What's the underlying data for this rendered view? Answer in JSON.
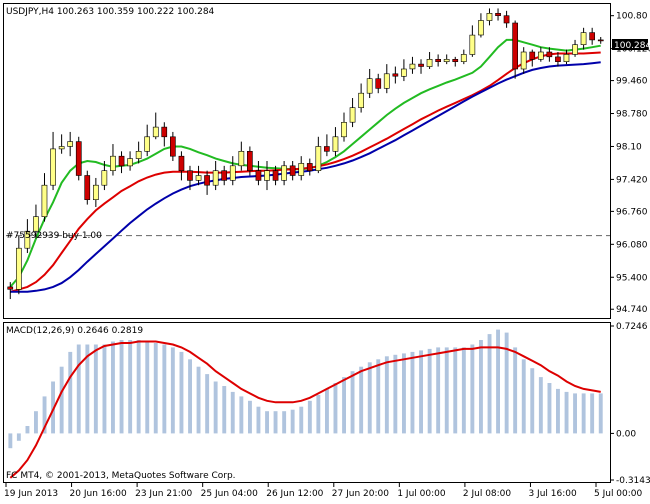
{
  "window": {
    "symbol_line": "USDJPY,H4  100.263 100.359 100.222 100.284",
    "order_line": "#75592939 buy 1.00",
    "copyright": "FC MT4, © 2001-2013, MetaQuotes Software Corp.",
    "macd_label": "MACD(12,26,9) 0.2646 0.2819",
    "current_price": "100.284",
    "colors": {
      "bull_candle": "#ffff88",
      "bear_candle": "#cc0000",
      "ma_fast": "#22bb22",
      "ma_mid": "#dd0000",
      "ma_slow": "#0000aa",
      "macd_hist": "#b0c4de",
      "macd_signal": "#dd0000",
      "order_line": "#666666"
    }
  },
  "chart_data": [
    {
      "type": "candlestick",
      "title": "USDJPY,H4",
      "y_ticks": [
        "100.80",
        "100.120",
        "99.460",
        "98.780",
        "98.10",
        "97.420",
        "96.760",
        "96.080",
        "95.400",
        "94.740"
      ],
      "ylim": [
        94.6,
        101.0
      ],
      "x_ticks": [
        "19 Jun 2013",
        "20 Jun 16:00",
        "23 Jun 21:00",
        "25 Jun 04:00",
        "26 Jun 12:00",
        "27 Jun 20:00",
        "1 Jul 00:00",
        "2 Jul 08:00",
        "3 Jul 16:00",
        "5 Jul 00:00"
      ],
      "order_price": 96.26,
      "grid": false,
      "candles": [
        [
          95.2,
          95.15,
          95.3,
          94.95
        ],
        [
          95.15,
          96.0,
          96.25,
          95.05
        ],
        [
          96.0,
          96.35,
          96.6,
          95.9
        ],
        [
          96.35,
          96.65,
          96.9,
          96.2
        ],
        [
          96.65,
          97.3,
          97.55,
          96.55
        ],
        [
          97.3,
          98.05,
          98.4,
          97.2
        ],
        [
          98.05,
          98.1,
          98.35,
          97.95
        ],
        [
          98.1,
          98.2,
          98.4,
          97.9
        ],
        [
          98.2,
          97.5,
          98.3,
          97.4
        ],
        [
          97.5,
          97.0,
          97.6,
          96.9
        ],
        [
          97.0,
          97.3,
          97.45,
          96.85
        ],
        [
          97.3,
          97.6,
          97.8,
          97.2
        ],
        [
          97.6,
          97.9,
          98.15,
          97.5
        ],
        [
          97.9,
          97.7,
          98.0,
          97.55
        ],
        [
          97.7,
          97.85,
          98.0,
          97.6
        ],
        [
          97.85,
          98.0,
          98.2,
          97.75
        ],
        [
          98.0,
          98.3,
          98.55,
          97.9
        ],
        [
          98.3,
          98.5,
          98.8,
          98.25
        ],
        [
          98.5,
          98.3,
          98.6,
          98.1
        ],
        [
          98.3,
          97.9,
          98.4,
          97.8
        ],
        [
          97.9,
          97.6,
          98.0,
          97.4
        ],
        [
          97.6,
          97.4,
          97.7,
          97.2
        ],
        [
          97.4,
          97.5,
          97.7,
          97.3
        ],
        [
          97.5,
          97.3,
          97.6,
          97.1
        ],
        [
          97.3,
          97.6,
          97.8,
          97.2
        ],
        [
          97.6,
          97.4,
          97.7,
          97.3
        ],
        [
          97.4,
          97.7,
          97.9,
          97.3
        ],
        [
          97.7,
          98.0,
          98.2,
          97.6
        ],
        [
          98.0,
          97.6,
          98.1,
          97.5
        ],
        [
          97.6,
          97.4,
          97.8,
          97.3
        ],
        [
          97.4,
          97.6,
          97.8,
          97.2
        ],
        [
          97.6,
          97.4,
          97.7,
          97.3
        ],
        [
          97.4,
          97.7,
          97.8,
          97.3
        ],
        [
          97.7,
          97.5,
          97.8,
          97.4
        ],
        [
          97.5,
          97.75,
          97.9,
          97.4
        ],
        [
          97.75,
          97.6,
          97.85,
          97.5
        ],
        [
          97.6,
          98.1,
          98.3,
          97.55
        ],
        [
          98.1,
          98.0,
          98.35,
          97.9
        ],
        [
          98.0,
          98.3,
          98.5,
          97.9
        ],
        [
          98.3,
          98.6,
          98.8,
          98.2
        ],
        [
          98.6,
          98.9,
          99.1,
          98.5
        ],
        [
          98.9,
          99.2,
          99.4,
          98.8
        ],
        [
          99.2,
          99.5,
          99.7,
          99.1
        ],
        [
          99.5,
          99.3,
          99.6,
          99.2
        ],
        [
          99.3,
          99.6,
          99.8,
          99.2
        ],
        [
          99.6,
          99.55,
          99.75,
          99.4
        ],
        [
          99.55,
          99.7,
          99.9,
          99.45
        ],
        [
          99.7,
          99.8,
          99.95,
          99.6
        ],
        [
          99.8,
          99.75,
          99.9,
          99.6
        ],
        [
          99.75,
          99.9,
          100.05,
          99.7
        ],
        [
          99.9,
          99.85,
          100.0,
          99.75
        ],
        [
          99.85,
          99.9,
          100.0,
          99.8
        ],
        [
          99.9,
          99.85,
          99.95,
          99.75
        ],
        [
          99.85,
          100.0,
          100.1,
          99.8
        ],
        [
          100.0,
          100.4,
          100.6,
          99.95
        ],
        [
          100.4,
          100.7,
          100.85,
          100.35
        ],
        [
          100.7,
          100.85,
          100.95,
          100.6
        ],
        [
          100.85,
          100.8,
          100.95,
          100.7
        ],
        [
          100.8,
          100.65,
          100.9,
          100.55
        ],
        [
          100.65,
          99.7,
          100.7,
          99.5
        ],
        [
          99.7,
          100.05,
          100.15,
          99.6
        ],
        [
          100.05,
          99.9,
          100.1,
          99.75
        ],
        [
          99.9,
          100.05,
          100.15,
          99.85
        ],
        [
          100.05,
          99.95,
          100.15,
          99.85
        ],
        [
          99.95,
          99.85,
          100.05,
          99.75
        ],
        [
          99.85,
          100.0,
          100.1,
          99.8
        ],
        [
          100.0,
          100.2,
          100.3,
          99.95
        ],
        [
          100.2,
          100.45,
          100.55,
          100.1
        ],
        [
          100.45,
          100.3,
          100.55,
          100.2
        ],
        [
          100.3,
          100.28,
          100.36,
          100.22
        ]
      ],
      "series": [
        {
          "name": "ma_fast",
          "values": [
            95.2,
            95.4,
            95.75,
            96.2,
            96.6,
            96.95,
            97.35,
            97.6,
            97.75,
            97.8,
            97.78,
            97.72,
            97.68,
            97.7,
            97.72,
            97.78,
            97.85,
            97.95,
            98.05,
            98.1,
            98.1,
            98.05,
            97.98,
            97.92,
            97.85,
            97.8,
            97.75,
            97.72,
            97.7,
            97.68,
            97.66,
            97.65,
            97.64,
            97.63,
            97.63,
            97.65,
            97.7,
            97.78,
            97.88,
            98.0,
            98.15,
            98.3,
            98.45,
            98.6,
            98.75,
            98.88,
            99.0,
            99.1,
            99.2,
            99.28,
            99.35,
            99.42,
            99.48,
            99.55,
            99.62,
            99.75,
            99.95,
            100.15,
            100.3,
            100.3,
            100.25,
            100.2,
            100.15,
            100.12,
            100.1,
            100.08,
            100.1,
            100.12,
            100.15,
            100.18
          ]
        },
        {
          "name": "ma_mid",
          "values": [
            95.1,
            95.15,
            95.2,
            95.3,
            95.45,
            95.65,
            95.9,
            96.15,
            96.4,
            96.6,
            96.78,
            96.92,
            97.05,
            97.18,
            97.28,
            97.38,
            97.46,
            97.52,
            97.56,
            97.58,
            97.58,
            97.58,
            97.57,
            97.56,
            97.56,
            97.56,
            97.57,
            97.58,
            97.59,
            97.6,
            97.6,
            97.61,
            97.62,
            97.63,
            97.64,
            97.66,
            97.69,
            97.73,
            97.78,
            97.84,
            97.91,
            97.99,
            98.08,
            98.17,
            98.26,
            98.36,
            98.46,
            98.56,
            98.66,
            98.75,
            98.84,
            98.92,
            99.0,
            99.08,
            99.16,
            99.25,
            99.35,
            99.47,
            99.6,
            99.72,
            99.82,
            99.9,
            99.96,
            100.0,
            100.02,
            100.02,
            100.02,
            100.02,
            100.03,
            100.04
          ]
        },
        {
          "name": "ma_slow",
          "values": [
            95.1,
            95.1,
            95.1,
            95.12,
            95.15,
            95.2,
            95.28,
            95.4,
            95.55,
            95.72,
            95.88,
            96.04,
            96.2,
            96.36,
            96.52,
            96.66,
            96.8,
            96.92,
            97.03,
            97.13,
            97.21,
            97.28,
            97.33,
            97.37,
            97.4,
            97.43,
            97.45,
            97.47,
            97.48,
            97.49,
            97.5,
            97.52,
            97.54,
            97.56,
            97.58,
            97.6,
            97.63,
            97.66,
            97.7,
            97.75,
            97.81,
            97.88,
            97.96,
            98.05,
            98.14,
            98.23,
            98.33,
            98.43,
            98.53,
            98.63,
            98.73,
            98.83,
            98.93,
            99.03,
            99.13,
            99.22,
            99.31,
            99.4,
            99.48,
            99.55,
            99.62,
            99.68,
            99.72,
            99.75,
            99.77,
            99.78,
            99.79,
            99.8,
            99.82,
            99.84
          ]
        }
      ]
    },
    {
      "type": "bar",
      "title": "MACD(12,26,9) 0.2646 0.2819",
      "y_ticks": [
        "0.7246",
        "0.00",
        "-0.3143"
      ],
      "ylim": [
        -0.3143,
        0.7246
      ],
      "series": [
        {
          "name": "MACD",
          "values": [
            -0.1,
            -0.05,
            0.05,
            0.15,
            0.25,
            0.35,
            0.45,
            0.55,
            0.6,
            0.6,
            0.6,
            0.6,
            0.62,
            0.63,
            0.63,
            0.63,
            0.62,
            0.61,
            0.6,
            0.58,
            0.55,
            0.5,
            0.45,
            0.4,
            0.35,
            0.32,
            0.28,
            0.25,
            0.22,
            0.18,
            0.15,
            0.15,
            0.15,
            0.16,
            0.18,
            0.22,
            0.26,
            0.3,
            0.34,
            0.38,
            0.42,
            0.45,
            0.48,
            0.5,
            0.52,
            0.53,
            0.54,
            0.55,
            0.56,
            0.57,
            0.58,
            0.58,
            0.58,
            0.58,
            0.6,
            0.63,
            0.67,
            0.7,
            0.68,
            0.58,
            0.5,
            0.44,
            0.38,
            0.34,
            0.3,
            0.28,
            0.27,
            0.27,
            0.27,
            0.27
          ]
        },
        {
          "name": "Signal",
          "values": [
            -0.3,
            -0.25,
            -0.18,
            -0.08,
            0.04,
            0.16,
            0.28,
            0.38,
            0.46,
            0.52,
            0.56,
            0.59,
            0.6,
            0.61,
            0.61,
            0.62,
            0.62,
            0.62,
            0.61,
            0.6,
            0.58,
            0.55,
            0.51,
            0.47,
            0.42,
            0.38,
            0.34,
            0.3,
            0.27,
            0.24,
            0.22,
            0.21,
            0.21,
            0.21,
            0.22,
            0.24,
            0.27,
            0.3,
            0.33,
            0.36,
            0.39,
            0.42,
            0.44,
            0.46,
            0.48,
            0.49,
            0.5,
            0.51,
            0.52,
            0.53,
            0.54,
            0.55,
            0.56,
            0.57,
            0.57,
            0.58,
            0.58,
            0.58,
            0.57,
            0.55,
            0.52,
            0.49,
            0.46,
            0.42,
            0.39,
            0.35,
            0.32,
            0.3,
            0.29,
            0.28
          ]
        }
      ]
    }
  ]
}
